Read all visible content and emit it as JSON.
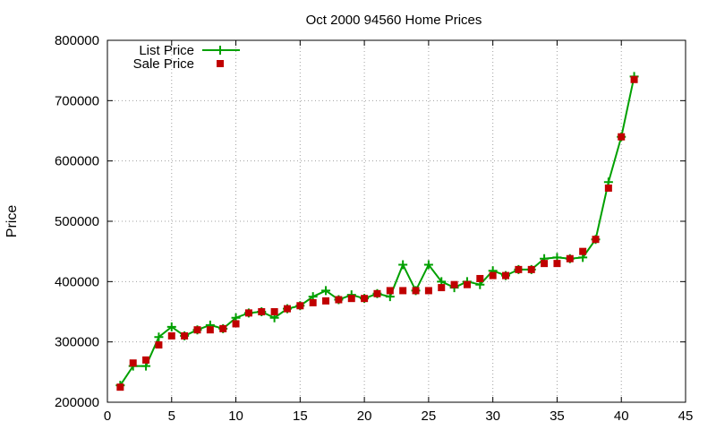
{
  "chart_data": {
    "type": "line",
    "title": "Oct 2000 94560 Home Prices",
    "xlabel": "",
    "ylabel": "Price",
    "xlim": [
      0,
      45
    ],
    "ylim": [
      200000,
      800000
    ],
    "x_ticks": [
      0,
      5,
      10,
      15,
      20,
      25,
      30,
      35,
      40,
      45
    ],
    "y_ticks": [
      200000,
      300000,
      400000,
      500000,
      600000,
      700000,
      800000
    ],
    "grid": true,
    "legend_position": "top-left",
    "x": [
      1,
      2,
      3,
      4,
      5,
      6,
      7,
      8,
      9,
      10,
      11,
      12,
      13,
      14,
      15,
      16,
      17,
      18,
      19,
      20,
      21,
      22,
      23,
      24,
      25,
      26,
      27,
      28,
      29,
      30,
      31,
      32,
      33,
      34,
      35,
      36,
      37,
      38,
      39,
      40,
      41
    ],
    "series": [
      {
        "name": "List Price",
        "style": "line-with-plus-markers",
        "color": "#00a000",
        "values": [
          228000,
          260000,
          260000,
          308000,
          325000,
          310000,
          320000,
          328000,
          322000,
          340000,
          348000,
          350000,
          340000,
          355000,
          360000,
          375000,
          385000,
          370000,
          378000,
          372000,
          380000,
          375000,
          428000,
          385000,
          428000,
          400000,
          390000,
          400000,
          395000,
          418000,
          410000,
          420000,
          420000,
          438000,
          440000,
          438000,
          440000,
          470000,
          565000,
          640000,
          740000
        ]
      },
      {
        "name": "Sale Price",
        "style": "square-markers",
        "color": "#c00000",
        "values": [
          225000,
          265000,
          270000,
          295000,
          310000,
          310000,
          320000,
          320000,
          322000,
          330000,
          348000,
          350000,
          350000,
          355000,
          360000,
          365000,
          368000,
          370000,
          372000,
          372000,
          380000,
          385000,
          385000,
          385000,
          385000,
          390000,
          395000,
          395000,
          405000,
          410000,
          410000,
          420000,
          420000,
          430000,
          430000,
          438000,
          450000,
          470000,
          555000,
          640000,
          735000
        ]
      }
    ]
  }
}
